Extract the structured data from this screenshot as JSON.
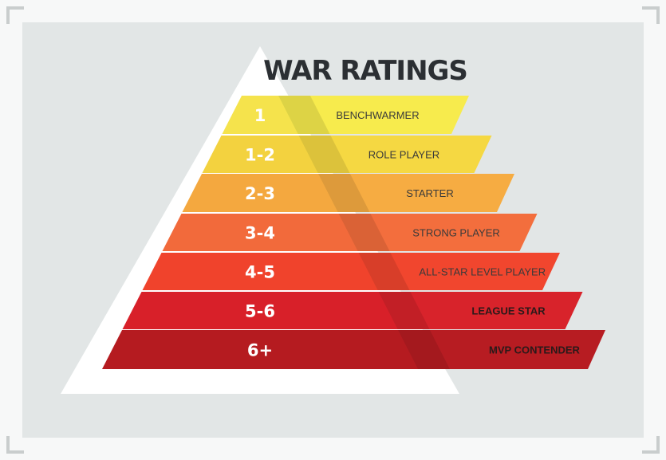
{
  "title": "WAR RATINGS",
  "colors": {
    "background": "#e2e6e6",
    "frame_corners": "#c9cdcd",
    "outer_triangle": "#ffffff",
    "title": "#2b2f33"
  },
  "tiers": [
    {
      "range": "1",
      "label": "BENCHWARMER",
      "color": "#f5e34c",
      "bar_color": "#f7eb4d",
      "bold": false
    },
    {
      "range": "1-2",
      "label": "ROLE PLAYER",
      "color": "#f3d23f",
      "bar_color": "#f5d842",
      "bold": false
    },
    {
      "range": "2-3",
      "label": "STARTER",
      "color": "#f4a83f",
      "bar_color": "#f6ac42",
      "bold": false
    },
    {
      "range": "3-4",
      "label": "STRONG PLAYER",
      "color": "#f26a3b",
      "bar_color": "#f36e3d",
      "bold": false
    },
    {
      "range": "4-5",
      "label": "ALL-STAR LEVEL PLAYER",
      "color": "#f0432c",
      "bar_color": "#f1462e",
      "bold": false
    },
    {
      "range": "5-6",
      "label": "LEAGUE STAR",
      "color": "#d82029",
      "bar_color": "#d8232b",
      "bold": true
    },
    {
      "range": "6+",
      "label": "MVP CONTENDER",
      "color": "#b51b20",
      "bar_color": "#b71c22",
      "bold": true
    }
  ]
}
